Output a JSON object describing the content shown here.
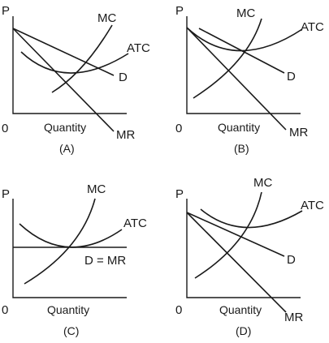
{
  "panels": [
    {
      "id": "A",
      "caption": "(A)",
      "y_axis_label": "P",
      "origin_label": "0",
      "x_axis_label": "Quantity",
      "curve_labels": {
        "mc": "MC",
        "atc": "ATC",
        "d": "D",
        "mr": "MR"
      }
    },
    {
      "id": "B",
      "caption": "(B)",
      "y_axis_label": "P",
      "origin_label": "0",
      "x_axis_label": "Quantity",
      "curve_labels": {
        "mc": "MC",
        "atc": "ATC",
        "d": "D",
        "mr": "MR"
      }
    },
    {
      "id": "C",
      "caption": "(C)",
      "y_axis_label": "P",
      "origin_label": "0",
      "x_axis_label": "Quantity",
      "curve_labels": {
        "mc": "MC",
        "atc": "ATC",
        "dmr": "D = MR"
      }
    },
    {
      "id": "D",
      "caption": "(D)",
      "y_axis_label": "P",
      "origin_label": "0",
      "x_axis_label": "Quantity",
      "curve_labels": {
        "mc": "MC",
        "atc": "ATC",
        "d": "D",
        "mr": "MR"
      }
    }
  ]
}
